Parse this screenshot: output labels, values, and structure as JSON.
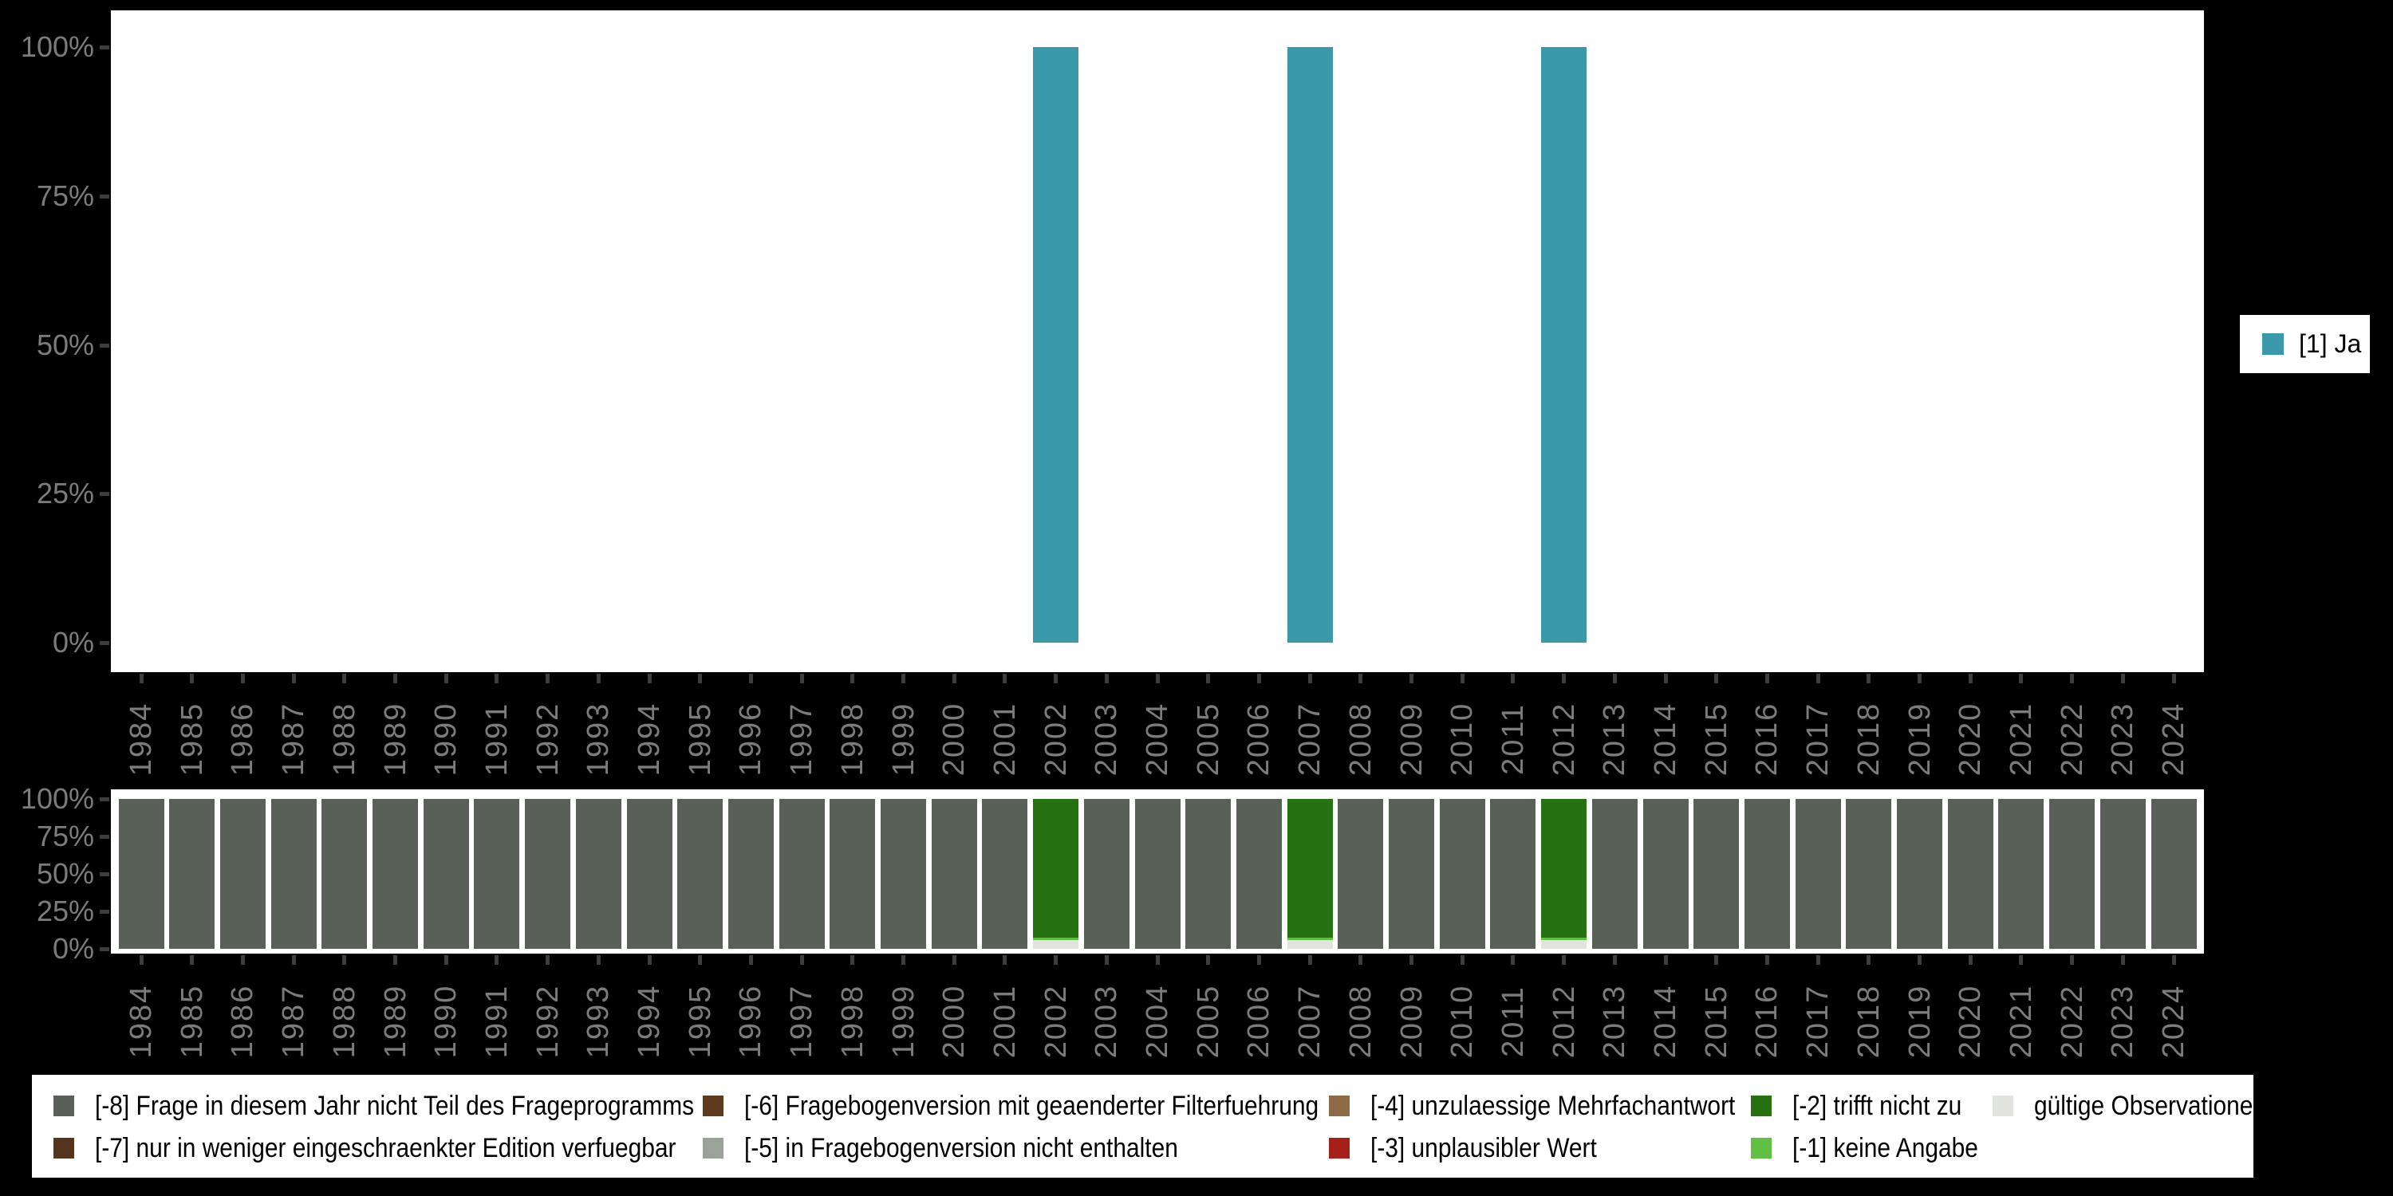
{
  "page": {
    "background": "#000000"
  },
  "axis": {
    "tick_color": "#3e3e3e",
    "label_color": "#7c7c7c",
    "y_tick_labels": [
      "100%",
      "75%",
      "50%",
      "25%",
      "0%"
    ]
  },
  "top_legend": {
    "label": "[1] Ja",
    "color": "#3a98ab"
  },
  "chart_data": [
    {
      "type": "bar",
      "title": "",
      "xlabel": "",
      "ylabel": "",
      "ylim": [
        0,
        100
      ],
      "y_ticks": [
        "0%",
        "25%",
        "50%",
        "75%",
        "100%"
      ],
      "legend_position": "right",
      "grid": false,
      "categories": [
        "1984",
        "1985",
        "1986",
        "1987",
        "1988",
        "1989",
        "1990",
        "1991",
        "1992",
        "1993",
        "1994",
        "1995",
        "1996",
        "1997",
        "1998",
        "1999",
        "2000",
        "2001",
        "2002",
        "2003",
        "2004",
        "2005",
        "2006",
        "2007",
        "2008",
        "2009",
        "2010",
        "2011",
        "2012",
        "2013",
        "2014",
        "2015",
        "2016",
        "2017",
        "2018",
        "2019",
        "2020",
        "2021",
        "2022",
        "2023",
        "2024"
      ],
      "series": [
        {
          "name": "[1] Ja",
          "color": "#3a98ab",
          "values": [
            0,
            0,
            0,
            0,
            0,
            0,
            0,
            0,
            0,
            0,
            0,
            0,
            0,
            0,
            0,
            0,
            0,
            0,
            100,
            0,
            0,
            0,
            0,
            100,
            0,
            0,
            0,
            0,
            100,
            0,
            0,
            0,
            0,
            0,
            0,
            0,
            0,
            0,
            0,
            0,
            0
          ]
        }
      ]
    },
    {
      "type": "stacked-bar",
      "title": "",
      "xlabel": "",
      "ylabel": "",
      "ylim": [
        0,
        100
      ],
      "y_ticks": [
        "0%",
        "25%",
        "50%",
        "75%",
        "100%"
      ],
      "grid": false,
      "categories": [
        "1984",
        "1985",
        "1986",
        "1987",
        "1988",
        "1989",
        "1990",
        "1991",
        "1992",
        "1993",
        "1994",
        "1995",
        "1996",
        "1997",
        "1998",
        "1999",
        "2000",
        "2001",
        "2002",
        "2003",
        "2004",
        "2005",
        "2006",
        "2007",
        "2008",
        "2009",
        "2010",
        "2011",
        "2012",
        "2013",
        "2014",
        "2015",
        "2016",
        "2017",
        "2018",
        "2019",
        "2020",
        "2021",
        "2022",
        "2023",
        "2024"
      ],
      "series": [
        {
          "name": "gültige Observationen",
          "color": "#e0e4dc",
          "values": [
            0,
            0,
            0,
            0,
            0,
            0,
            0,
            0,
            0,
            0,
            0,
            0,
            0,
            0,
            0,
            0,
            0,
            0,
            6,
            0,
            0,
            0,
            0,
            6,
            0,
            0,
            0,
            0,
            6,
            0,
            0,
            0,
            0,
            0,
            0,
            0,
            0,
            0,
            0,
            0,
            0
          ]
        },
        {
          "name": "[-1] keine Angabe",
          "color": "#5fc044",
          "values": [
            0,
            0,
            0,
            0,
            0,
            0,
            0,
            0,
            0,
            0,
            0,
            0,
            0,
            0,
            0,
            0,
            0,
            0,
            1.5,
            0,
            0,
            0,
            0,
            1.5,
            0,
            0,
            0,
            0,
            1.5,
            0,
            0,
            0,
            0,
            0,
            0,
            0,
            0,
            0,
            0,
            0,
            0
          ]
        },
        {
          "name": "[-2] trifft nicht zu",
          "color": "#267112",
          "values": [
            0,
            0,
            0,
            0,
            0,
            0,
            0,
            0,
            0,
            0,
            0,
            0,
            0,
            0,
            0,
            0,
            0,
            0,
            92.5,
            0,
            0,
            0,
            0,
            92.5,
            0,
            0,
            0,
            0,
            92.5,
            0,
            0,
            0,
            0,
            0,
            0,
            0,
            0,
            0,
            0,
            0,
            0
          ]
        },
        {
          "name": "[-8] Frage in diesem Jahr nicht Teil des Frageprogramms",
          "color": "#586057",
          "values": [
            100,
            100,
            100,
            100,
            100,
            100,
            100,
            100,
            100,
            100,
            100,
            100,
            100,
            100,
            100,
            100,
            100,
            100,
            0,
            100,
            100,
            100,
            100,
            0,
            100,
            100,
            100,
            100,
            0,
            100,
            100,
            100,
            100,
            100,
            100,
            100,
            100,
            100,
            100,
            100,
            100
          ]
        }
      ]
    }
  ],
  "bottom_legend": {
    "items": [
      {
        "label": "[-8] Frage in diesem Jahr nicht Teil des Frageprogramms",
        "color": "#586057",
        "col": 0,
        "row": 0
      },
      {
        "label": "[-7] nur in weniger eingeschraenkter Edition verfuegbar",
        "color": "#54341c",
        "col": 0,
        "row": 1
      },
      {
        "label": "[-6] Fragebogenversion mit geaenderter Filterfuehrung",
        "color": "#5e3b1e",
        "col": 1,
        "row": 0
      },
      {
        "label": "[-5] in Fragebogenversion nicht enthalten",
        "color": "#9aa29a",
        "col": 1,
        "row": 1
      },
      {
        "label": "[-4] unzulaessige Mehrfachantwort",
        "color": "#8c6b46",
        "col": 2,
        "row": 0
      },
      {
        "label": "[-3] unplausibler Wert",
        "color": "#a6201a",
        "col": 2,
        "row": 1
      },
      {
        "label": "[-2] trifft nicht zu",
        "color": "#267112",
        "col": 3,
        "row": 0
      },
      {
        "label": "[-1] keine Angabe",
        "color": "#5fc044",
        "col": 3,
        "row": 1
      },
      {
        "label": "gültige Observationen",
        "color": "#e0e4dc",
        "col": 4,
        "row": 0
      }
    ]
  }
}
